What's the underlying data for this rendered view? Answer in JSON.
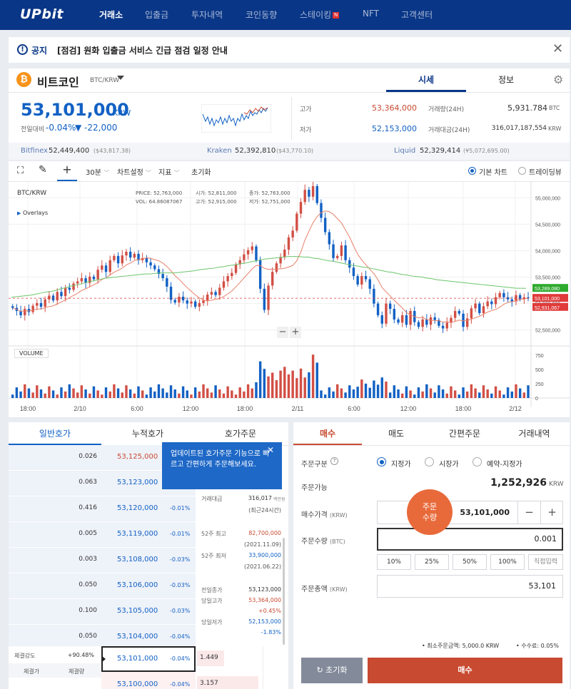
{
  "nav": {
    "logo": "UPbit",
    "items": [
      "거래소",
      "입출금",
      "투자내역",
      "코인동향",
      "스테이킹",
      "NFT",
      "고객센터"
    ],
    "new_badge": "N",
    "active_index": 0
  },
  "notice": {
    "label": "공지",
    "text": "[점검] 원화 입출금 서비스 긴급 점검 일정 안내"
  },
  "coin": {
    "name": "비트코인",
    "pair": "BTC/KRW",
    "icon_letter": "₿",
    "price": "53,101,000",
    "currency": "KRW",
    "change_label": "전일대비",
    "change_pct": "-0.04%",
    "change_amt": "▼ -22,000",
    "tabs": [
      "시세",
      "정보"
    ],
    "high_label": "고가",
    "high": "53,364,000",
    "low_label": "저가",
    "low": "52,153,000",
    "volume_label": "거래량(24H)",
    "volume": "5,931.784",
    "volume_unit": "BTC",
    "amount_label": "거래대금(24H)",
    "amount": "316,017,187,554",
    "amount_unit": "KRW"
  },
  "exchanges": [
    {
      "name": "Bitfinex",
      "price": "52,449,400",
      "usd": "($43,817.38)"
    },
    {
      "name": "Kraken",
      "price": "52,392,810",
      "usd": "($43,770.10)"
    },
    {
      "name": "Liquid",
      "price": "52,329,414",
      "usd": "(¥5,072,695.00)"
    }
  ],
  "chart_toolbar": {
    "interval": "30분",
    "settings": "차트설정",
    "indicator": "지표",
    "reset": "초기화",
    "basic_chart": "기본 차트",
    "tradingview": "트레이딩뷰"
  },
  "chart_info": {
    "symbol": "BTC/KRW",
    "overlays": "Overlays",
    "price_label": "PRICE:",
    "price": "52,763,000",
    "vol_label": "VOL:",
    "vol": "64.86087067",
    "open_label": "시가:",
    "open": "52,811,000",
    "high_label": "고가:",
    "high": "52,915,000",
    "close_label": "종가:",
    "close": "52,763,000",
    "low_label": "저가:",
    "low": "52,751,000",
    "volume_title": "VOLUME"
  },
  "chart_data": {
    "type": "candlestick",
    "x_ticks": [
      "18:00",
      "2/10",
      "6:00",
      "12:00",
      "18:00",
      "2/11",
      "6:00",
      "12:00",
      "18:00",
      "2/12"
    ],
    "y_ticks": [
      "55,000,000",
      "54,500,000",
      "54,000,000",
      "53,500,000",
      "53,000,000",
      "52,500,000"
    ],
    "y_range": [
      52200000,
      55300000
    ],
    "volume_ticks": [
      "750",
      "500",
      "250",
      "0"
    ],
    "volume_range": [
      0,
      850
    ],
    "price_flags": [
      {
        "value": 53289080,
        "label": "53,289,080",
        "color": "#2eaa2e"
      },
      {
        "value": 53101000,
        "label": "53,101,000",
        "color": "#e03a3a"
      },
      {
        "value": 52931067,
        "label": "52,931,067",
        "color": "#e03a3a"
      }
    ],
    "close": [
      52920000,
      52860000,
      52780000,
      52900000,
      52840000,
      52960000,
      53010000,
      52940000,
      53080000,
      53150000,
      53060000,
      53220000,
      53140000,
      53300000,
      53260000,
      53380000,
      53420000,
      53480000,
      53390000,
      53510000,
      53460000,
      53640000,
      53720000,
      53600000,
      53820000,
      53900000,
      53760000,
      53910000,
      53980000,
      53870000,
      53940000,
      53820000,
      53860000,
      53780000,
      53720000,
      53650000,
      53560000,
      53480000,
      53320000,
      53070000,
      53020000,
      53130000,
      53060000,
      53000000,
      53040000,
      52940000,
      53010000,
      53060000,
      53170000,
      53220000,
      53160000,
      53300000,
      53420000,
      53520000,
      53580000,
      53740000,
      53820000,
      53930000,
      54010000,
      54080000,
      53820000,
      53280000,
      52880000,
      53340000,
      53600000,
      53760000,
      53880000,
      54020000,
      54250000,
      54380000,
      54700000,
      54920000,
      55150000,
      55020000,
      55220000,
      54900000,
      54620000,
      54350000,
      54120000,
      53860000,
      53900000,
      54100000,
      53820000,
      53680000,
      53520000,
      53360000,
      53520000,
      53460000,
      53280000,
      53000000,
      52780000,
      52620000,
      53000000,
      52900000,
      52700000,
      52640000,
      52780000,
      52600000,
      52860000,
      52650000,
      52560000,
      52700000,
      52600000,
      52740000,
      52690000,
      52580000,
      52530000,
      52640000,
      52730000,
      52860000,
      52810000,
      52560000,
      52720000,
      52910000,
      53000000,
      52820000,
      52950000,
      53040000,
      52990000,
      53120000,
      53200000,
      53120000,
      53080000,
      53040000,
      53160000,
      53080000,
      53120000,
      53101000
    ],
    "ma_long": [
      53120000,
      53130000,
      53140000,
      53150000,
      53160000,
      53180000,
      53200000,
      53220000,
      53230000,
      53250000,
      53280000,
      53300000,
      53330000,
      53350000,
      53370000,
      53400000,
      53420000,
      53440000,
      53460000,
      53480000,
      53490000,
      53500000,
      53510000,
      53520000,
      53530000,
      53540000,
      53550000,
      53560000,
      53560000,
      53570000,
      53580000,
      53580000,
      53580000,
      53580000,
      53590000,
      53600000,
      53610000,
      53620000,
      53640000,
      53650000,
      53660000,
      53670000,
      53690000,
      53700000,
      53720000,
      53730000,
      53750000,
      53760000,
      53780000,
      53800000,
      53820000,
      53840000,
      53850000,
      53860000,
      53870000,
      53880000,
      53890000,
      53890000,
      53890000,
      53880000,
      53880000,
      53860000,
      53850000,
      53830000,
      53810000,
      53800000,
      53780000,
      53760000,
      53740000,
      53720000,
      53710000,
      53690000,
      53680000,
      53660000,
      53640000,
      53620000,
      53600000,
      53590000,
      53570000,
      53550000,
      53540000,
      53520000,
      53510000,
      53500000,
      53480000,
      53470000,
      53450000,
      53440000,
      53430000,
      53420000,
      53410000,
      53400000,
      53390000,
      53380000,
      53370000,
      53360000,
      53350000,
      53340000,
      53330000,
      53320000,
      53310000,
      53300000,
      53290000,
      53290000,
      53289080
    ]
  },
  "orderbook": {
    "tabs": [
      "일반호가",
      "누적호가",
      "호가주문"
    ],
    "tooltip": "업데이트된 호가주문 기능으로 빠르고 간편하게 주문해보세요.",
    "rows": [
      {
        "qty": "0.026",
        "price": "53,125,000",
        "pct": ""
      },
      {
        "qty": "0.063",
        "price": "53,123,000",
        "pct": ""
      },
      {
        "qty": "0.416",
        "price": "53,120,000",
        "pct": "-0.01%"
      },
      {
        "qty": "0.005",
        "price": "53,119,000",
        "pct": "-0.01%"
      },
      {
        "qty": "0.003",
        "price": "53,108,000",
        "pct": "-0.03%"
      },
      {
        "qty": "0.050",
        "price": "53,106,000",
        "pct": "-0.03%"
      },
      {
        "qty": "0.100",
        "price": "53,105,000",
        "pct": "-0.03%"
      },
      {
        "qty": "0.050",
        "price": "53,104,000",
        "pct": "-0.04%"
      }
    ],
    "bids": [
      {
        "price": "53,101,000",
        "pct": "-0.04%",
        "qty": "1.449"
      },
      {
        "price": "53,100,000",
        "pct": "-0.04%",
        "qty": "3.157"
      }
    ],
    "stats": [
      {
        "label": "거래대금",
        "value": "316,017",
        "unit": "백만원",
        "sub": "(최근24시간)",
        "color": "#333"
      },
      {
        "label": "52주 최고",
        "value": "82,700,000",
        "sub": "(2021.11.09)",
        "color": "#c84a31"
      },
      {
        "label": "52주 최저",
        "value": "33,900,000",
        "sub": "(2021.06.22)",
        "color": "#1261c4"
      }
    ],
    "stats2": [
      {
        "label": "전일종가",
        "value": "53,123,000",
        "sub": "",
        "color": "#333"
      },
      {
        "label": "당일고가",
        "value": "53,364,000",
        "sub": "+0.45%",
        "color": "#c84a31"
      },
      {
        "label": "당일저가",
        "value": "52,153,000",
        "sub": "-1.83%",
        "color": "#1261c4"
      }
    ],
    "strength_label": "체결강도",
    "strength": "+90.48%",
    "trade_price_col": "체결가",
    "trade_qty_col": "체결량"
  },
  "order": {
    "tabs": [
      "매수",
      "매도",
      "간편주문",
      "거래내역"
    ],
    "type_label": "주문구분",
    "types": [
      "지정가",
      "시장가",
      "예약-지정가"
    ],
    "available_label": "주문가능",
    "available": "1,252,926",
    "available_unit": "KRW",
    "price_label": "매수가격",
    "price_unit": "(KRW)",
    "price": "53,101,000",
    "qty_label": "주문수량",
    "qty_unit": "(BTC)",
    "qty": "0.001",
    "pct_buttons": [
      "10%",
      "25%",
      "50%",
      "100%",
      "직접입력"
    ],
    "total_label": "주문총액",
    "total_unit": "(KRW)",
    "total": "53,101",
    "min_order": "최소주문금액: 5,000.0 KRW",
    "fee": "수수료: 0.05%",
    "reset": "초기화",
    "buy": "매수",
    "bubble_line1": "주문",
    "bubble_line2": "수량"
  }
}
